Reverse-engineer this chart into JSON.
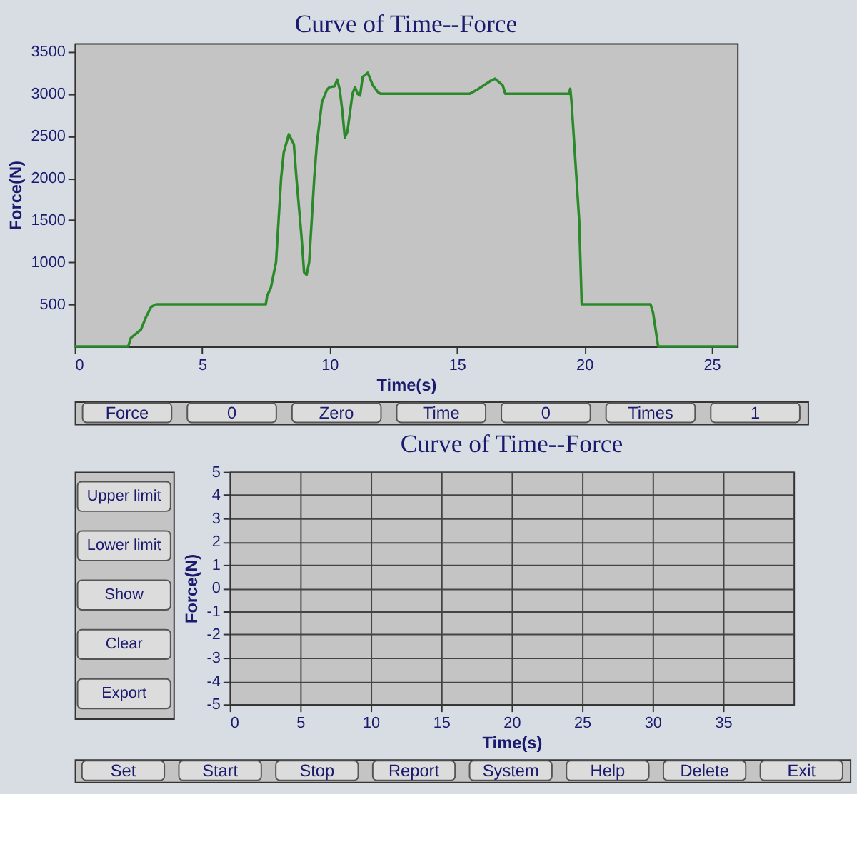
{
  "chart_data": [
    {
      "type": "line",
      "title": "Curve of Time--Force",
      "xlabel": "Time(s)",
      "ylabel": "Force(N)",
      "xlim": [
        0,
        26
      ],
      "xticks": [
        0,
        5,
        10,
        15,
        20,
        25
      ],
      "ylim": [
        0,
        3600
      ],
      "yticks": [
        500,
        1000,
        1500,
        2000,
        2500,
        3000,
        3500
      ],
      "grid": false,
      "legend": false,
      "marker": "none",
      "line_style": "solid",
      "series": [
        {
          "color": "#2a8a2a",
          "x": [
            0,
            2.1,
            2.2,
            2.4,
            2.6,
            2.8,
            3.0,
            3.2,
            3.5,
            7.5,
            7.55,
            7.7,
            7.9,
            8.0,
            8.1,
            8.2,
            8.4,
            8.6,
            8.7,
            8.9,
            9.0,
            9.1,
            9.2,
            9.3,
            9.4,
            9.5,
            9.7,
            9.9,
            10.0,
            10.2,
            10.3,
            10.4,
            10.5,
            10.6,
            10.7,
            10.9,
            11.0,
            11.1,
            11.2,
            11.3,
            11.5,
            11.7,
            11.9,
            12.0,
            15.5,
            15.8,
            16.3,
            16.5,
            16.8,
            16.9,
            19.4,
            19.45,
            19.5,
            19.8,
            19.9,
            22.6,
            22.7,
            22.9,
            26
          ],
          "values": [
            0,
            0,
            100,
            150,
            200,
            350,
            470,
            500,
            500,
            500,
            600,
            700,
            1000,
            1500,
            2000,
            2300,
            2520,
            2400,
            2000,
            1300,
            880,
            850,
            1000,
            1500,
            2000,
            2400,
            2900,
            3050,
            3080,
            3090,
            3170,
            3050,
            2800,
            2480,
            2550,
            3000,
            3080,
            3000,
            2980,
            3200,
            3250,
            3100,
            3020,
            3000,
            3000,
            3050,
            3150,
            3180,
            3100,
            3000,
            3000,
            3060,
            2900,
            1500,
            500,
            500,
            400,
            0,
            0
          ]
        }
      ]
    },
    {
      "type": "line",
      "title": "Curve of Time--Force",
      "xlabel": "Time(s)",
      "ylabel": "Force(N)",
      "xlim": [
        0,
        40
      ],
      "xticks": [
        0,
        5,
        10,
        15,
        20,
        25,
        30,
        35
      ],
      "ylim": [
        -5,
        5
      ],
      "yticks": [
        -5,
        -4,
        -3,
        -2,
        -1,
        0,
        1,
        2,
        3,
        4,
        5
      ],
      "grid": true,
      "legend": false,
      "annotations": [
        "Force",
        "0",
        "Zero",
        "Time",
        "0",
        "Times",
        "1",
        "Upper limit",
        "Lower limit",
        "Show",
        "Clear",
        "Export",
        "Set",
        "Start",
        "Stop",
        "Report",
        "System",
        "Help",
        "Delete",
        "Exit"
      ]
    }
  ]
}
